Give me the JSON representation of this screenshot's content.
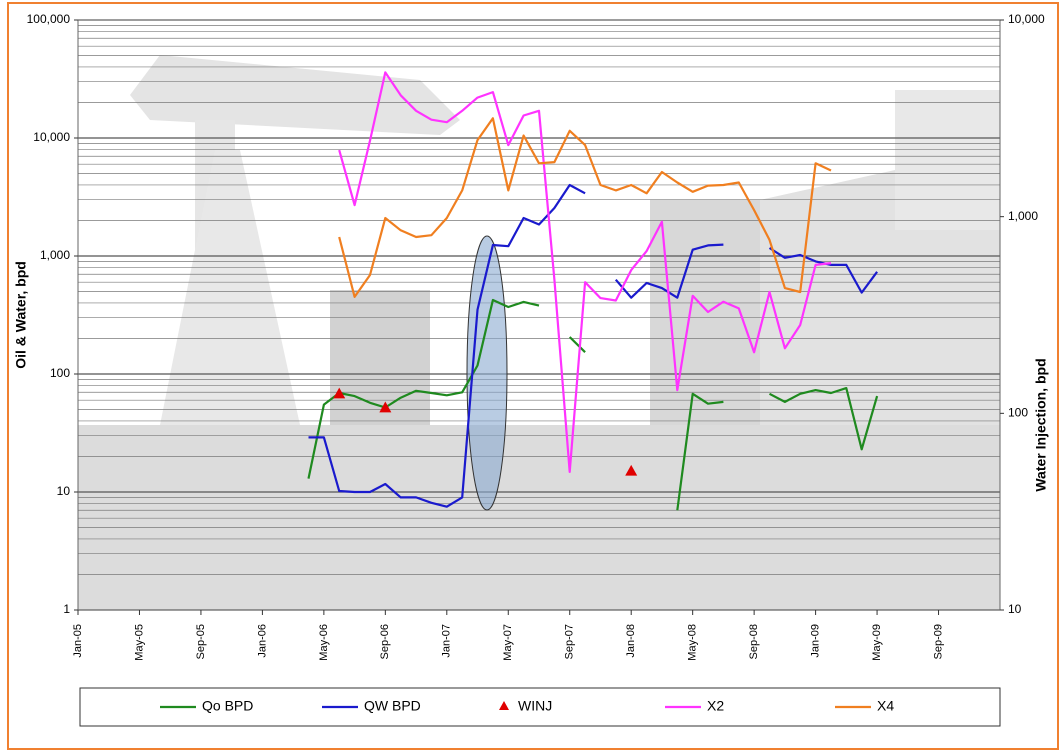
{
  "chart_data": {
    "type": "line",
    "ylabel": "Oil & Water, bpd",
    "y2label": "Water Injection, bpd",
    "log_y": true,
    "grid": true,
    "minor_grid": true,
    "legend": "bottom",
    "ylim": [
      1,
      100000
    ],
    "yticks": [
      1,
      10,
      100,
      {
        "value": 1000,
        "label": "1,000"
      },
      {
        "value": 10000,
        "label": "10,000"
      },
      {
        "value": 100000,
        "label": "100,000"
      }
    ],
    "y2lim": [
      10,
      10000
    ],
    "y2ticks": [
      10,
      100,
      {
        "value": 1000,
        "label": "1,000"
      },
      {
        "value": 10000,
        "label": "10,000"
      }
    ],
    "categories": [
      "Jan-05",
      null,
      null,
      null,
      "May-05",
      null,
      null,
      null,
      "Sep-05",
      null,
      null,
      null,
      "Jan-06",
      null,
      null,
      null,
      "May-06",
      null,
      null,
      null,
      "Sep-06",
      null,
      null,
      null,
      "Jan-07",
      null,
      null,
      null,
      "May-07",
      null,
      null,
      null,
      "Sep-07",
      null,
      null,
      null,
      "Jan-08",
      null,
      null,
      null,
      "May-08",
      null,
      null,
      null,
      "Sep-08",
      null,
      null,
      null,
      "Jan-09",
      null,
      null,
      null,
      "May-09",
      null,
      null,
      null,
      "Sep-09",
      null,
      null,
      null
    ],
    "series": [
      {
        "name": "Qo BPD",
        "color": "#1f8a1f",
        "values": [
          null,
          null,
          null,
          null,
          null,
          null,
          null,
          null,
          null,
          null,
          null,
          null,
          null,
          null,
          null,
          13,
          55,
          69,
          65,
          57,
          52,
          63,
          72,
          69,
          66,
          70,
          118,
          424,
          370,
          408,
          380,
          null,
          206,
          153,
          null,
          null,
          null,
          null,
          null,
          7,
          68,
          56,
          58,
          null,
          null,
          68,
          58,
          68,
          73,
          69,
          76,
          23,
          65,
          null,
          null,
          null,
          null,
          null,
          null,
          null
        ]
      },
      {
        "name": "QW BPD",
        "color": "#1a1acd",
        "values": [
          null,
          null,
          null,
          null,
          null,
          null,
          null,
          null,
          null,
          null,
          null,
          null,
          null,
          null,
          null,
          29,
          29,
          10.2,
          10,
          10,
          11.7,
          9,
          9,
          8.1,
          7.5,
          9,
          350,
          1240,
          1210,
          2100,
          1850,
          2550,
          4000,
          3400,
          null,
          630,
          443,
          590,
          535,
          443,
          1130,
          1230,
          1250,
          null,
          null,
          1170,
          965,
          1020,
          900,
          840,
          840,
          490,
          735,
          null,
          null,
          null,
          null,
          null,
          null,
          null
        ]
      },
      {
        "name": "WINJ",
        "color": "#e00000",
        "axis": "y2",
        "marker": "triangle",
        "values": [
          null,
          null,
          null,
          null,
          null,
          null,
          null,
          null,
          null,
          null,
          null,
          null,
          null,
          null,
          null,
          null,
          null,
          126,
          null,
          null,
          107,
          null,
          null,
          null,
          null,
          null,
          null,
          null,
          null,
          null,
          null,
          null,
          null,
          null,
          null,
          null,
          51,
          null,
          null,
          null,
          null,
          null,
          null,
          null,
          null,
          null,
          null,
          null,
          null,
          null,
          null,
          null,
          null,
          null,
          null,
          null,
          null,
          null,
          null,
          null
        ]
      },
      {
        "name": "X2",
        "color": "#ff33ff",
        "values": [
          null,
          null,
          null,
          null,
          null,
          null,
          null,
          null,
          null,
          null,
          null,
          null,
          null,
          null,
          null,
          null,
          null,
          7900,
          2700,
          9500,
          36000,
          23000,
          17000,
          14300,
          13600,
          17000,
          22000,
          24500,
          8700,
          15500,
          17000,
          630,
          14.8,
          600,
          440,
          420,
          760,
          1100,
          1950,
          73,
          460,
          335,
          410,
          360,
          153,
          495,
          165,
          260,
          840,
          870,
          null,
          null,
          null,
          null,
          null,
          null,
          null,
          null,
          null,
          null
        ]
      },
      {
        "name": "X4",
        "color": "#f07f20",
        "values": [
          null,
          null,
          null,
          null,
          null,
          null,
          null,
          null,
          null,
          null,
          null,
          null,
          null,
          null,
          null,
          null,
          null,
          1450,
          450,
          690,
          2100,
          1650,
          1450,
          1500,
          2100,
          3600,
          9600,
          14700,
          3600,
          10500,
          6100,
          6250,
          11500,
          8700,
          4000,
          3600,
          4000,
          3400,
          5150,
          4200,
          3500,
          3950,
          4000,
          4200,
          2450,
          1370,
          535,
          495,
          6100,
          5300,
          null,
          null,
          null,
          null,
          null,
          null,
          null,
          null,
          null,
          null
        ]
      }
    ]
  }
}
